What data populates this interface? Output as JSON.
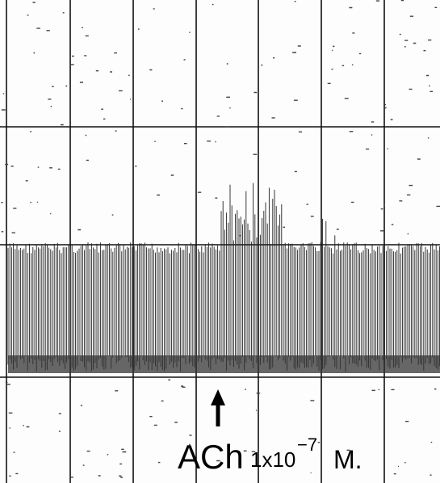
{
  "annotation": {
    "agent": "ACh",
    "concentration": "1x10",
    "exponent": "−7",
    "unit": "M."
  }
}
